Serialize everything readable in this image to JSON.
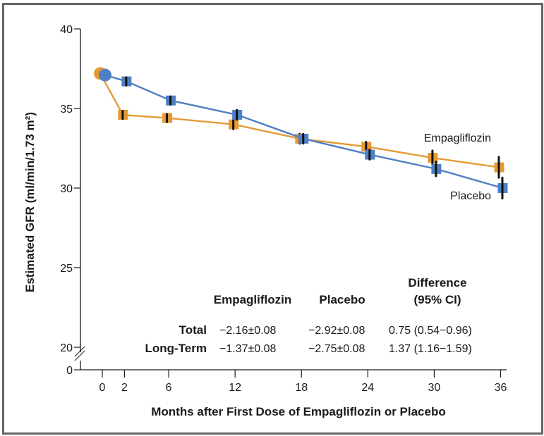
{
  "chart_data": {
    "type": "line",
    "title": "",
    "xlabel": "Months after First Dose of Empagliflozin or Placebo",
    "ylabel": "Estimated GFR (ml/min/1.73 m²)",
    "x_ticks": [
      0,
      2,
      6,
      12,
      18,
      24,
      30,
      36
    ],
    "y_ticks": [
      0,
      20,
      25,
      30,
      35,
      40
    ],
    "y_axis_break": [
      0,
      20
    ],
    "xlim": [
      -1,
      37
    ],
    "ylim": [
      20,
      40
    ],
    "grid": false,
    "x": [
      0,
      2,
      6,
      12,
      18,
      24,
      30,
      36
    ],
    "series": [
      {
        "name": "Empagliflozin",
        "color": "#e59a35",
        "values": [
          37.2,
          34.6,
          34.4,
          34.0,
          33.1,
          32.6,
          31.9,
          31.3
        ],
        "error": [
          0.0,
          0.25,
          0.25,
          0.3,
          0.3,
          0.3,
          0.45,
          0.65
        ]
      },
      {
        "name": "Placebo",
        "color": "#4f7fc4",
        "values": [
          37.1,
          36.7,
          35.5,
          34.6,
          33.1,
          32.1,
          31.2,
          30.0
        ],
        "error": [
          0.0,
          0.25,
          0.25,
          0.3,
          0.3,
          0.3,
          0.45,
          0.65
        ]
      }
    ],
    "annotations": [
      {
        "text": "Empagliflozin",
        "series": "Empagliflozin"
      },
      {
        "text": "Placebo",
        "series": "Placebo"
      }
    ],
    "table": {
      "headers": [
        "",
        "Empagliflozin",
        "Placebo",
        "Difference",
        "(95% CI)"
      ],
      "rows": [
        {
          "label": "Total",
          "empagliflozin": "−2.16±0.08",
          "placebo": "−2.92±0.08",
          "difference": "0.75 (0.54−0.96)"
        },
        {
          "label": "Long-Term",
          "empagliflozin": "−1.37±0.08",
          "placebo": "−2.75±0.08",
          "difference": "1.37 (1.16−1.59)"
        }
      ]
    }
  }
}
